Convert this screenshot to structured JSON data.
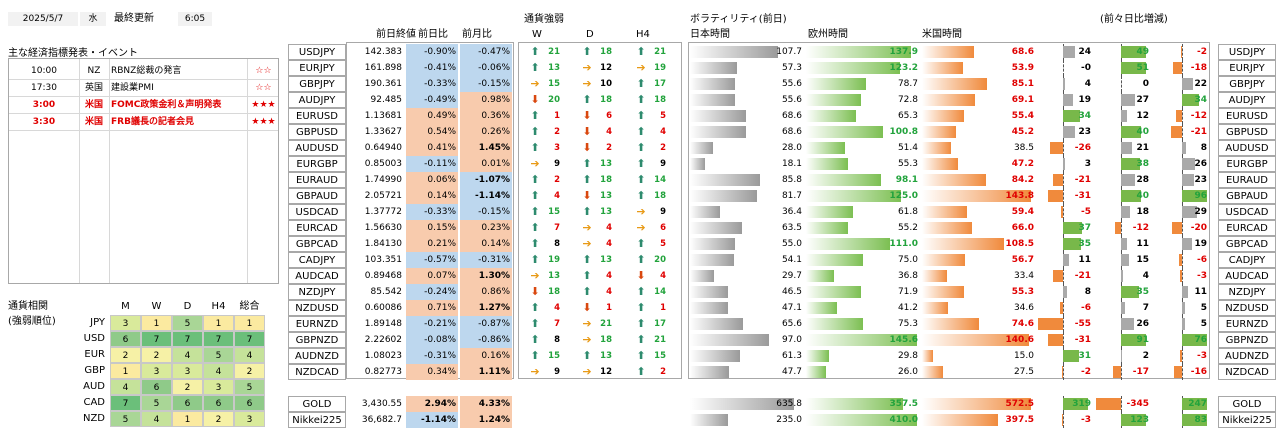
{
  "header": {
    "date": "2025/5/7",
    "weekday": "水",
    "updated_label": "最終更新",
    "time": "6:05"
  },
  "events": {
    "title": "主な経済指標発表・イベント",
    "rows": [
      {
        "time": "10:00",
        "country": "NZ",
        "name": "RBNZ総裁の発言",
        "stars": "☆☆",
        "highlight": false
      },
      {
        "time": "17:30",
        "country": "英国",
        "name": "建設業PMI",
        "stars": "☆☆",
        "highlight": false
      },
      {
        "time": "3:00",
        "country": "米国",
        "name": "FOMC政策金利＆声明発表",
        "stars": "★★★",
        "highlight": true
      },
      {
        "time": "3:30",
        "country": "米国",
        "name": "FRB議長の記者会見",
        "stars": "★★★",
        "highlight": true
      }
    ]
  },
  "correlation": {
    "title_line1": "通貨相関",
    "title_line2": "(強弱順位)",
    "headers": [
      "M",
      "W",
      "D",
      "H4",
      "総合"
    ],
    "rows": [
      {
        "cur": "JPY",
        "vals": [
          3,
          1,
          5,
          1,
          1
        ]
      },
      {
        "cur": "USD",
        "vals": [
          6,
          7,
          7,
          7,
          7
        ]
      },
      {
        "cur": "EUR",
        "vals": [
          2,
          2,
          4,
          5,
          4
        ]
      },
      {
        "cur": "GBP",
        "vals": [
          1,
          3,
          3,
          4,
          2
        ]
      },
      {
        "cur": "AUD",
        "vals": [
          4,
          6,
          2,
          3,
          5
        ]
      },
      {
        "cur": "CAD",
        "vals": [
          7,
          5,
          6,
          6,
          6
        ]
      },
      {
        "cur": "NZD",
        "vals": [
          5,
          4,
          1,
          2,
          3
        ]
      }
    ]
  },
  "table_headers": {
    "prev_close": "前日終値",
    "dod": "前日比",
    "mom": "前月比",
    "strength": "通貨強弱",
    "w": "W",
    "d": "D",
    "h4": "H4",
    "volatility": "ボラティリティ(前日)",
    "asia": "日本時間",
    "europe": "欧州時間",
    "us": "米国時間",
    "change": "(前々日比増減)"
  },
  "rows": [
    {
      "pair": "USDJPY",
      "close": "142.383",
      "dod": "-0.90%",
      "mom": "-0.47%",
      "w": [
        "up",
        21
      ],
      "d": [
        "up",
        18
      ],
      "h4": [
        "up",
        21
      ],
      "asia": "107.7",
      "eu": "137.9",
      "us": "68.6",
      "c1": "24",
      "c2": "49",
      "c3": "-2"
    },
    {
      "pair": "EURJPY",
      "close": "161.898",
      "dod": "-0.41%",
      "mom": "-0.06%",
      "w": [
        "up",
        13
      ],
      "d": [
        "rt",
        12
      ],
      "h4": [
        "rt",
        19
      ],
      "asia": "57.3",
      "eu": "123.2",
      "us": "53.9",
      "c1": "-0",
      "c2": "51",
      "c3": "-18"
    },
    {
      "pair": "GBPJPY",
      "close": "190.361",
      "dod": "-0.33%",
      "mom": "-0.15%",
      "w": [
        "rt",
        15
      ],
      "d": [
        "rt",
        10
      ],
      "h4": [
        "up",
        17
      ],
      "asia": "55.6",
      "eu": "78.7",
      "us": "85.1",
      "c1": "4",
      "c2": "0",
      "c3": "22"
    },
    {
      "pair": "AUDJPY",
      "close": "92.485",
      "dod": "-0.49%",
      "mom": "0.98%",
      "w": [
        "dn",
        20
      ],
      "d": [
        "up",
        18
      ],
      "h4": [
        "up",
        18
      ],
      "asia": "55.6",
      "eu": "72.8",
      "us": "69.1",
      "c1": "19",
      "c2": "27",
      "c3": "34"
    },
    {
      "pair": "EURUSD",
      "close": "1.13681",
      "dod": "0.49%",
      "mom": "0.36%",
      "w": [
        "up",
        1
      ],
      "d": [
        "dn",
        6
      ],
      "h4": [
        "up",
        5
      ],
      "asia": "68.6",
      "eu": "65.3",
      "us": "55.4",
      "c1": "34",
      "c2": "12",
      "c3": "-12"
    },
    {
      "pair": "GBPUSD",
      "close": "1.33627",
      "dod": "0.54%",
      "mom": "0.26%",
      "w": [
        "up",
        2
      ],
      "d": [
        "dn",
        4
      ],
      "h4": [
        "up",
        4
      ],
      "asia": "68.6",
      "eu": "100.8",
      "us": "45.2",
      "c1": "23",
      "c2": "40",
      "c3": "-21"
    },
    {
      "pair": "AUDUSD",
      "close": "0.64940",
      "dod": "0.41%",
      "mom": "1.45%",
      "w": [
        "up",
        3
      ],
      "d": [
        "dn",
        2
      ],
      "h4": [
        "up",
        2
      ],
      "asia": "28.0",
      "eu": "51.4",
      "us": "38.5",
      "c1": "-26",
      "c2": "21",
      "c3": "8"
    },
    {
      "pair": "EURGBP",
      "close": "0.85003",
      "dod": "-0.11%",
      "mom": "0.01%",
      "w": [
        "rt",
        9
      ],
      "d": [
        "up",
        13
      ],
      "h4": [
        "up",
        9
      ],
      "asia": "18.1",
      "eu": "55.3",
      "us": "47.2",
      "c1": "3",
      "c2": "38",
      "c3": "26"
    },
    {
      "pair": "EURAUD",
      "close": "1.74990",
      "dod": "0.06%",
      "mom": "-1.07%",
      "w": [
        "up",
        2
      ],
      "d": [
        "up",
        18
      ],
      "h4": [
        "up",
        14
      ],
      "asia": "85.8",
      "eu": "98.1",
      "us": "84.2",
      "c1": "-21",
      "c2": "28",
      "c3": "23"
    },
    {
      "pair": "GBPAUD",
      "close": "2.05721",
      "dod": "0.14%",
      "mom": "-1.14%",
      "w": [
        "up",
        4
      ],
      "d": [
        "dn",
        13
      ],
      "h4": [
        "up",
        18
      ],
      "asia": "81.7",
      "eu": "125.0",
      "us": "143.8",
      "c1": "-31",
      "c2": "40",
      "c3": "96"
    },
    {
      "pair": "USDCAD",
      "close": "1.37772",
      "dod": "-0.33%",
      "mom": "-0.15%",
      "w": [
        "up",
        15
      ],
      "d": [
        "up",
        13
      ],
      "h4": [
        "rt",
        9
      ],
      "asia": "36.4",
      "eu": "61.8",
      "us": "59.4",
      "c1": "-5",
      "c2": "18",
      "c3": "29"
    },
    {
      "pair": "EURCAD",
      "close": "1.56630",
      "dod": "0.15%",
      "mom": "0.23%",
      "w": [
        "up",
        7
      ],
      "d": [
        "rt",
        4
      ],
      "h4": [
        "rt",
        6
      ],
      "asia": "63.5",
      "eu": "55.2",
      "us": "66.0",
      "c1": "37",
      "c2": "-12",
      "c3": "-20"
    },
    {
      "pair": "GBPCAD",
      "close": "1.84130",
      "dod": "0.21%",
      "mom": "0.14%",
      "w": [
        "up",
        8
      ],
      "d": [
        "rt",
        4
      ],
      "h4": [
        "up",
        5
      ],
      "asia": "55.0",
      "eu": "111.0",
      "us": "108.5",
      "c1": "35",
      "c2": "11",
      "c3": "19"
    },
    {
      "pair": "CADJPY",
      "close": "103.351",
      "dod": "-0.57%",
      "mom": "-0.31%",
      "w": [
        "up",
        19
      ],
      "d": [
        "up",
        13
      ],
      "h4": [
        "up",
        20
      ],
      "asia": "54.1",
      "eu": "75.0",
      "us": "56.7",
      "c1": "11",
      "c2": "15",
      "c3": "-6"
    },
    {
      "pair": "AUDCAD",
      "close": "0.89468",
      "dod": "0.07%",
      "mom": "1.30%",
      "w": [
        "rt",
        13
      ],
      "d": [
        "up",
        4
      ],
      "h4": [
        "dn",
        4
      ],
      "asia": "29.7",
      "eu": "36.8",
      "us": "33.4",
      "c1": "-21",
      "c2": "4",
      "c3": "-3"
    },
    {
      "pair": "NZDJPY",
      "close": "85.542",
      "dod": "-0.24%",
      "mom": "0.86%",
      "w": [
        "dn",
        18
      ],
      "d": [
        "up",
        4
      ],
      "h4": [
        "up",
        14
      ],
      "asia": "46.5",
      "eu": "71.9",
      "us": "55.3",
      "c1": "8",
      "c2": "35",
      "c3": "11"
    },
    {
      "pair": "NZDUSD",
      "close": "0.60086",
      "dod": "0.71%",
      "mom": "1.27%",
      "w": [
        "up",
        4
      ],
      "d": [
        "dn",
        1
      ],
      "h4": [
        "up",
        1
      ],
      "asia": "47.1",
      "eu": "41.2",
      "us": "34.6",
      "c1": "-6",
      "c2": "7",
      "c3": "5"
    },
    {
      "pair": "EURNZD",
      "close": "1.89148",
      "dod": "-0.21%",
      "mom": "-0.87%",
      "w": [
        "up",
        7
      ],
      "d": [
        "rt",
        21
      ],
      "h4": [
        "up",
        17
      ],
      "asia": "65.6",
      "eu": "75.3",
      "us": "74.6",
      "c1": "-55",
      "c2": "26",
      "c3": "5"
    },
    {
      "pair": "GBPNZD",
      "close": "2.22602",
      "dod": "-0.08%",
      "mom": "-0.86%",
      "w": [
        "up",
        8
      ],
      "d": [
        "rt",
        18
      ],
      "h4": [
        "up",
        21
      ],
      "asia": "97.0",
      "eu": "145.6",
      "us": "140.6",
      "c1": "-31",
      "c2": "91",
      "c3": "76"
    },
    {
      "pair": "AUDNZD",
      "close": "1.08023",
      "dod": "-0.31%",
      "mom": "0.16%",
      "w": [
        "up",
        15
      ],
      "d": [
        "up",
        13
      ],
      "h4": [
        "up",
        15
      ],
      "asia": "61.3",
      "eu": "29.8",
      "us": "15.0",
      "c1": "31",
      "c2": "2",
      "c3": "-3"
    },
    {
      "pair": "NZDCAD",
      "close": "0.82773",
      "dod": "0.34%",
      "mom": "1.11%",
      "w": [
        "rt",
        9
      ],
      "d": [
        "rt",
        12
      ],
      "h4": [
        "up",
        2
      ],
      "asia": "47.7",
      "eu": "26.0",
      "us": "27.5",
      "c1": "-2",
      "c2": "-17",
      "c3": "-16"
    }
  ],
  "commodities": [
    {
      "pair": "GOLD",
      "close": "3,430.55",
      "dod": "2.94%",
      "mom": "4.33%",
      "asia": "635.8",
      "eu": "357.5",
      "us": "572.5",
      "c1": "319",
      "c2": "-345",
      "c3": "247"
    },
    {
      "pair": "Nikkei225",
      "close": "36,682.7",
      "dod": "-1.14%",
      "mom": "1.24%",
      "asia": "235.0",
      "eu": "410.0",
      "us": "397.5",
      "c1": "-3",
      "c2": "123",
      "c3": "83"
    }
  ],
  "colors": {
    "pos_bg": "#f8cbad",
    "neg_bg": "#bdd7ee",
    "green": "#22a33c",
    "red": "#e00000",
    "arrow_up": "#2e8b6e",
    "arrow_dn": "#d9480f",
    "arrow_rt": "#e89a16"
  }
}
